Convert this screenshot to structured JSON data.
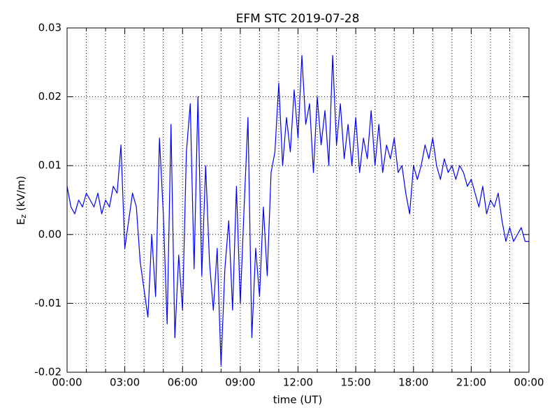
{
  "chart_data": {
    "type": "line",
    "title": "EFM STC    2019-07-28",
    "xlabel": "time (UT)",
    "ylabel": {
      "main": "E",
      "sub": "z",
      "unit": " (kV/m)"
    },
    "color": "#0000ff",
    "grid": true,
    "xlim": [
      0,
      24
    ],
    "xticks": [
      {
        "value": 0,
        "label": "00:00"
      },
      {
        "value": 3,
        "label": "03:00"
      },
      {
        "value": 6,
        "label": "06:00"
      },
      {
        "value": 9,
        "label": "09:00"
      },
      {
        "value": 12,
        "label": "12:00"
      },
      {
        "value": 15,
        "label": "15:00"
      },
      {
        "value": 18,
        "label": "18:00"
      },
      {
        "value": 21,
        "label": "21:00"
      },
      {
        "value": 24,
        "label": "00:00"
      }
    ],
    "xminorticks": [
      1,
      2,
      4,
      5,
      7,
      8,
      10,
      11,
      13,
      14,
      16,
      17,
      19,
      20,
      22,
      23
    ],
    "ylim": [
      -0.02,
      0.03
    ],
    "yticks": [
      -0.02,
      -0.01,
      {
        "value": 0,
        "label": "0.00"
      },
      0.01,
      0.02,
      0.03
    ],
    "x": [
      0.0,
      0.2,
      0.4,
      0.6,
      0.8,
      1.0,
      1.2,
      1.4,
      1.6,
      1.8,
      2.0,
      2.2,
      2.4,
      2.6,
      2.8,
      3.0,
      3.2,
      3.4,
      3.6,
      3.8,
      4.0,
      4.2,
      4.4,
      4.6,
      4.8,
      5.0,
      5.2,
      5.4,
      5.6,
      5.8,
      6.0,
      6.2,
      6.4,
      6.6,
      6.8,
      7.0,
      7.2,
      7.4,
      7.6,
      7.8,
      8.0,
      8.2,
      8.4,
      8.6,
      8.8,
      9.0,
      9.2,
      9.4,
      9.6,
      9.8,
      10.0,
      10.2,
      10.4,
      10.6,
      10.8,
      11.0,
      11.2,
      11.4,
      11.6,
      11.8,
      12.0,
      12.2,
      12.4,
      12.6,
      12.8,
      13.0,
      13.2,
      13.4,
      13.6,
      13.8,
      14.0,
      14.2,
      14.4,
      14.6,
      14.8,
      15.0,
      15.2,
      15.4,
      15.6,
      15.8,
      16.0,
      16.2,
      16.4,
      16.6,
      16.8,
      17.0,
      17.2,
      17.4,
      17.6,
      17.8,
      18.0,
      18.2,
      18.4,
      18.6,
      18.8,
      19.0,
      19.2,
      19.4,
      19.6,
      19.8,
      20.0,
      20.2,
      20.4,
      20.6,
      20.8,
      21.0,
      21.2,
      21.4,
      21.6,
      21.8,
      22.0,
      22.2,
      22.4,
      22.6,
      22.8,
      23.0,
      23.2,
      23.4,
      23.6,
      23.8,
      24.0
    ],
    "values": [
      0.007,
      0.004,
      0.003,
      0.005,
      0.004,
      0.006,
      0.005,
      0.004,
      0.006,
      0.003,
      0.005,
      0.004,
      0.007,
      0.006,
      0.013,
      -0.002,
      0.002,
      0.006,
      0.004,
      -0.004,
      -0.008,
      -0.012,
      0.0,
      -0.009,
      0.014,
      0.003,
      -0.013,
      0.016,
      -0.015,
      -0.003,
      -0.011,
      0.012,
      0.019,
      -0.005,
      0.02,
      -0.006,
      0.01,
      -0.004,
      -0.011,
      -0.002,
      -0.019,
      -0.005,
      0.002,
      -0.011,
      0.007,
      -0.01,
      0.004,
      0.017,
      -0.015,
      -0.002,
      -0.009,
      0.004,
      -0.006,
      0.009,
      0.012,
      0.022,
      0.01,
      0.017,
      0.012,
      0.021,
      0.014,
      0.026,
      0.016,
      0.019,
      0.009,
      0.02,
      0.013,
      0.018,
      0.01,
      0.026,
      0.013,
      0.019,
      0.011,
      0.016,
      0.01,
      0.017,
      0.009,
      0.014,
      0.011,
      0.018,
      0.01,
      0.016,
      0.009,
      0.013,
      0.011,
      0.014,
      0.009,
      0.01,
      0.006,
      0.003,
      0.01,
      0.008,
      0.01,
      0.013,
      0.011,
      0.014,
      0.01,
      0.008,
      0.011,
      0.009,
      0.01,
      0.008,
      0.01,
      0.009,
      0.007,
      0.008,
      0.006,
      0.004,
      0.007,
      0.003,
      0.005,
      0.004,
      0.006,
      0.002,
      -0.001,
      0.001,
      -0.001,
      0.0,
      0.001,
      -0.001,
      -0.001
    ]
  }
}
